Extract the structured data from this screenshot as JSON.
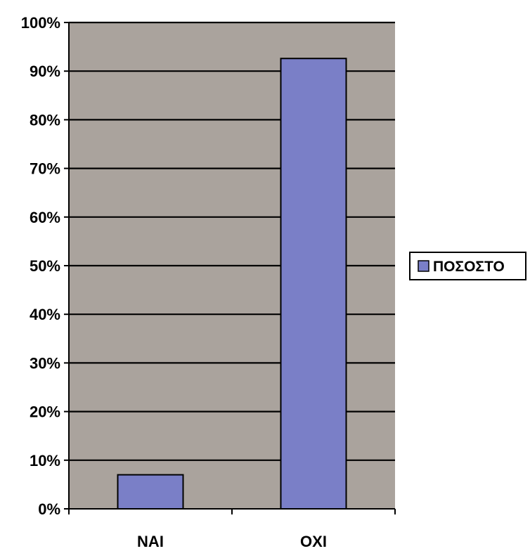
{
  "chart_data": {
    "type": "bar",
    "categories": [
      "ΝΑΙ",
      "ΟΧΙ"
    ],
    "series": [
      {
        "name": "ΠΟΣΟΣΤΟ",
        "values": [
          7,
          92.6
        ]
      }
    ],
    "ylim": [
      0,
      100
    ],
    "yticks": [
      0,
      10,
      20,
      30,
      40,
      50,
      60,
      70,
      80,
      90,
      100
    ],
    "ytick_labels": [
      "0%",
      "10%",
      "20%",
      "30%",
      "40%",
      "50%",
      "60%",
      "70%",
      "80%",
      "90%",
      "100%"
    ],
    "grid": true,
    "legend_position": "right",
    "colors": {
      "plot_background": "#aaa39d",
      "bar_fill": "#7a7fc7",
      "bar_stroke": "#000000",
      "gridline": "#000000"
    }
  }
}
